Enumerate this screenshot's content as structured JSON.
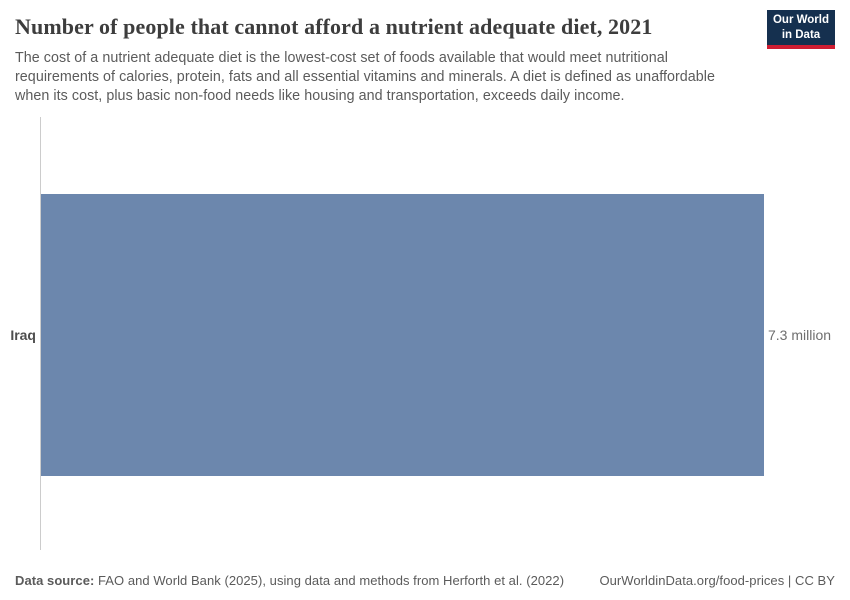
{
  "header": {
    "title": "Number of people that cannot afford a nutrient adequate diet, 2021",
    "subtitle": "The cost of a nutrient adequate diet is the lowest-cost set of foods available that would meet nutritional requirements of calories, protein, fats and all essential vitamins and minerals. A diet is defined as unaffordable when its cost, plus basic non-food needs like housing and transportation, exceeds daily income."
  },
  "logo": {
    "line1": "Our World",
    "line2": "in Data",
    "background_color": "#15304f",
    "accent_color": "#cf1d32"
  },
  "chart_data": {
    "type": "bar",
    "orientation": "horizontal",
    "title": "Number of people that cannot afford a nutrient adequate diet, 2021",
    "categories": [
      "Iraq"
    ],
    "values": [
      7300000
    ],
    "value_labels": [
      "7.3 million"
    ],
    "xlabel": "",
    "ylabel": "",
    "xlim": [
      0,
      7300000
    ],
    "grid": false,
    "legend": false,
    "bar_color": "#6c87ad",
    "axis_line_color": "#cccccc"
  },
  "footer": {
    "source_label": "Data source:",
    "source_text": " FAO and World Bank (2025), using data and methods from Herforth et al. (2022)",
    "link_text": "OurWorldinData.org/food-prices | CC BY"
  }
}
